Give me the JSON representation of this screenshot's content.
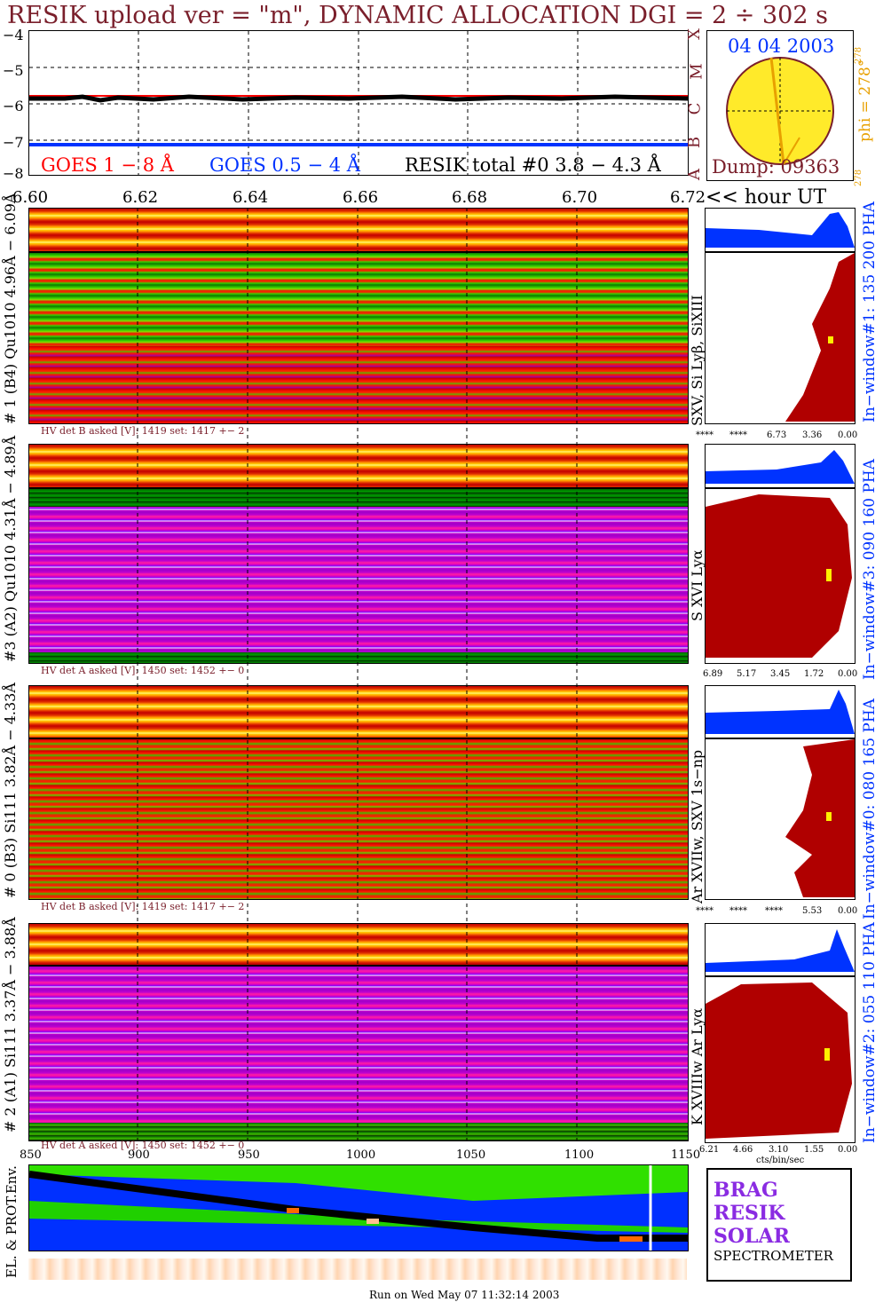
{
  "title": "RESIK upload ver = \"m\", DYNAMIC ALLOCATION  DGI =   2 ÷ 302 s",
  "goes_panel": {
    "y_ticks": [
      "−4",
      "−5",
      "−6",
      "−7",
      "−8"
    ],
    "legend": {
      "goes_long": "GOES 1 − 8 Å",
      "goes_short": "GOES 0.5 − 4 Å",
      "resik_total": "RESIK total #0  3.8 − 4.3 Å"
    },
    "class_letters": [
      "X",
      "M",
      "C",
      "B",
      "A"
    ],
    "colors": {
      "goes_long": "#ff0000",
      "goes_short": "#0033ff",
      "resik": "#000000"
    }
  },
  "sun_panel": {
    "date": "04 04 2003",
    "phi": "phi = 278°",
    "phi_sup": "278",
    "phi_bottom": "278",
    "dump": "Dump: 09363"
  },
  "time_axis": {
    "ticks": [
      "6.60",
      "6.62",
      "6.64",
      "6.66",
      "6.68",
      "6.70",
      "6.72"
    ],
    "unit": "<< hour UT"
  },
  "channels": [
    {
      "label": "# 1 (B4) Qu1010 4.96Å − 6.09Å",
      "lines": "SXV, Si Lyβ, SiXIII",
      "window": "In−window#1:  135 200 PHA",
      "hv": "HV det B asked [V]:  1419 set:  1417 +−    2",
      "axis": [
        "****",
        "****",
        "6.73",
        "3.36",
        "0.00"
      ],
      "theme": "green"
    },
    {
      "label": "#3 (A2) Qu1010  4.31Å − 4.89Å",
      "lines": "S XVI Lyα",
      "window": "In−window#3:  090 160 PHA",
      "hv": "HV det A asked [V]:  1450 set:  1452 +−    0",
      "axis": [
        "6.89",
        "5.17",
        "3.45",
        "1.72",
        "0.00"
      ],
      "theme": "purple"
    },
    {
      "label": "# 0 (B3) Si111  3.82Å − 4.33Å",
      "lines": "Ar XVIIw,  SXV 1s−np",
      "window": "In−window#0:  080 165 PHA",
      "hv": "HV det B asked [V]:  1419 set:  1417 +−    2",
      "axis": [
        "****",
        "****",
        "****",
        "5.53",
        "0.00"
      ],
      "theme": "redgreen"
    },
    {
      "label": "# 2 (A1) Si111  3.37Å − 3.88Å",
      "lines": "K XVIIIw  Ar Lyα",
      "window": "In−window#2:  055 110 PHA",
      "hv": "HV det A asked [V]:  1450 set:  1452 +−    0",
      "axis": [
        "6.21",
        "4.66",
        "3.10",
        "1.55",
        "0.00"
      ],
      "theme": "purple"
    }
  ],
  "side_axis_unit": "cts/bin/sec",
  "env_panel": {
    "label": "EL. & PROT.Env.",
    "ticks": [
      "850",
      "900",
      "950",
      "1000",
      "1050",
      "1100",
      "1150"
    ]
  },
  "logo": {
    "letters": "BRAG RESIK SOLAR",
    "caption": "SPECTROMETER"
  },
  "footer": "Run on Wed May 07 11:32:14 2003",
  "chart_data": {
    "type": "line",
    "title": "RESIK upload ver = \"m\", DYNAMIC ALLOCATION  DGI =   2 ÷ 302 s",
    "xlabel": "<< hour UT",
    "x_range": [
      6.6,
      6.72
    ],
    "ylim": [
      -8,
      -4
    ],
    "series": [
      {
        "name": "GOES 1 − 8 Å",
        "values": [
          -5.85,
          -5.85
        ]
      },
      {
        "name": "GOES 0.5 − 4 Å",
        "values": [
          -7.15,
          -7.15
        ]
      },
      {
        "name": "RESIK total #0  3.8 − 4.3 Å",
        "values": [
          -5.85,
          -5.85
        ]
      }
    ]
  }
}
